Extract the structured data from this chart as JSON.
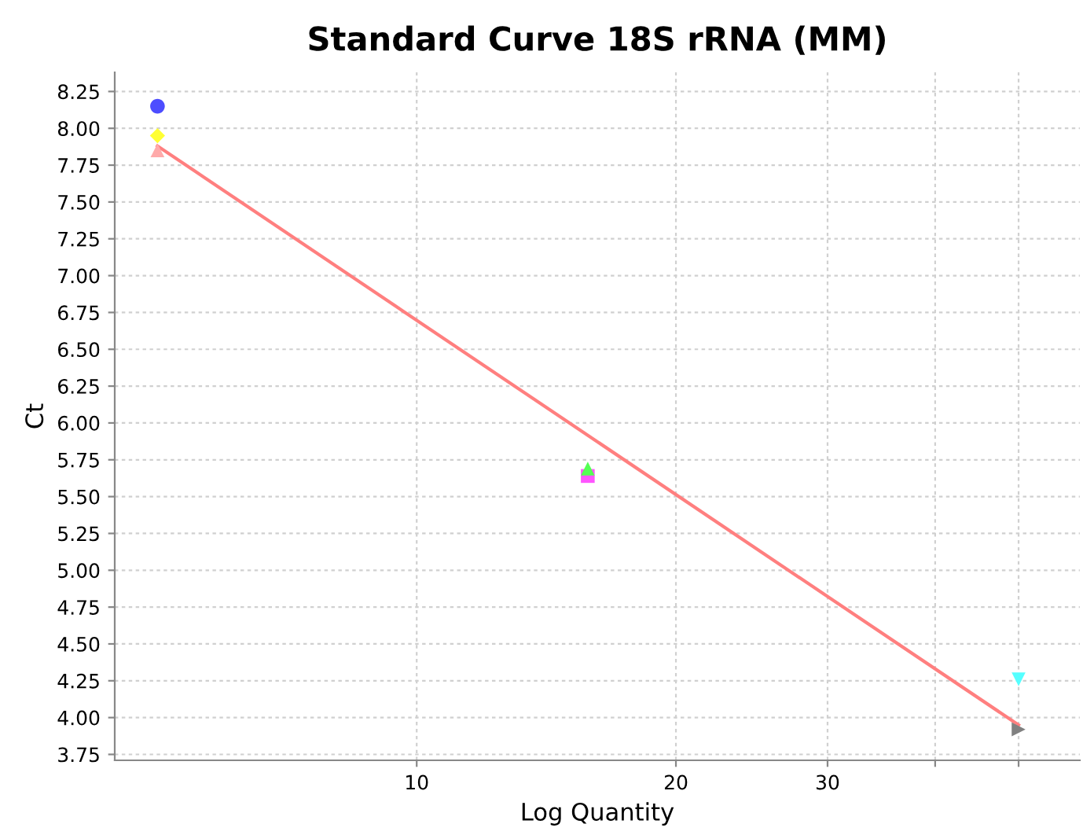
{
  "chart_data": {
    "type": "scatter",
    "title": "Standard Curve 18S rRNA (MM)",
    "xlabel": "Log Quantity",
    "ylabel": "Ct",
    "log": "x",
    "grid": true,
    "xlim": [
      4.46,
      58.9
    ],
    "xticks": [
      10,
      20,
      30,
      {
        "value": 40,
        "label": null
      },
      {
        "value": 50,
        "label": null
      }
    ],
    "ylim": [
      3.71,
      8.38
    ],
    "yticks": [
      {
        "value": 3.75,
        "label": "3.75"
      },
      {
        "value": 4.0,
        "label": "4.00"
      },
      {
        "value": 4.25,
        "label": "4.25"
      },
      {
        "value": 4.5,
        "label": "4.50"
      },
      {
        "value": 4.75,
        "label": "4.75"
      },
      {
        "value": 5.0,
        "label": "5.00"
      },
      {
        "value": 5.25,
        "label": "5.25"
      },
      {
        "value": 5.5,
        "label": "5.50"
      },
      {
        "value": 5.75,
        "label": "5.75"
      },
      {
        "value": 6.0,
        "label": "6.00"
      },
      {
        "value": 6.25,
        "label": "6.25"
      },
      {
        "value": 6.5,
        "label": "6.50"
      },
      {
        "value": 6.75,
        "label": "6.75"
      },
      {
        "value": 7.0,
        "label": "7.00"
      },
      {
        "value": 7.25,
        "label": "7.25"
      },
      {
        "value": 7.5,
        "label": "7.50"
      },
      {
        "value": 7.75,
        "label": "7.75"
      },
      {
        "value": 8.0,
        "label": "8.00"
      },
      {
        "value": 8.25,
        "label": "8.25"
      }
    ],
    "series": [
      {
        "type": "line",
        "color": "#ff7f7f",
        "marker": "none",
        "line_style": "solid",
        "x": [
          5,
          50
        ],
        "values": [
          7.88,
          3.95
        ]
      },
      {
        "color": "#4d4dff",
        "marker": "circle",
        "x": [
          5
        ],
        "values": [
          8.15
        ]
      },
      {
        "color": "#ffff33",
        "marker": "diamond",
        "x": [
          5
        ],
        "values": [
          7.95
        ]
      },
      {
        "color": "#ffaaaa",
        "marker": "triangle",
        "x": [
          5
        ],
        "values": [
          7.85
        ]
      },
      {
        "color": "#ff55ff",
        "marker": "square",
        "x": [
          15.8
        ],
        "values": [
          5.64
        ]
      },
      {
        "color": "#55ff55",
        "marker": "triangle",
        "x": [
          15.8
        ],
        "values": [
          5.69
        ]
      },
      {
        "color": "#55ffff",
        "marker": "triangle_down",
        "x": [
          50
        ],
        "values": [
          4.26
        ]
      },
      {
        "color": "#808080",
        "marker": "triangle_right",
        "x": [
          50
        ],
        "values": [
          3.92
        ]
      }
    ]
  }
}
